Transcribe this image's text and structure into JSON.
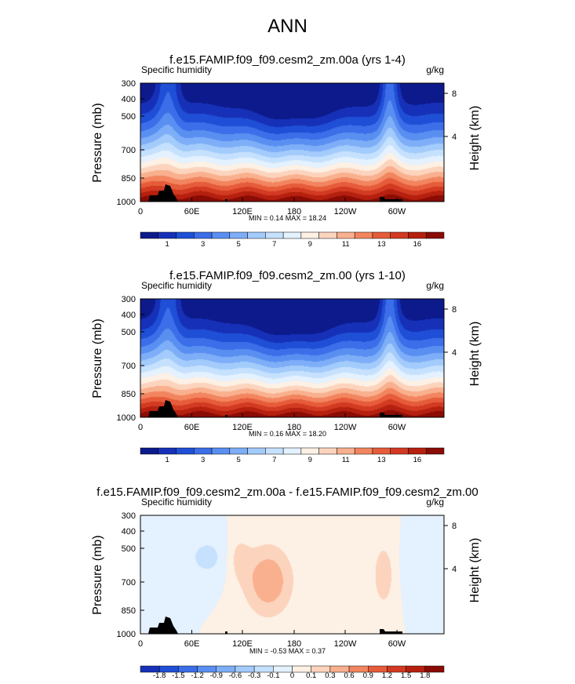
{
  "figure_title": "ANN",
  "colors": {
    "main_palette": [
      "#0d1a8c",
      "#1631b8",
      "#1f4fd6",
      "#3b6ee8",
      "#5a8ff2",
      "#7eaef7",
      "#a3cbfb",
      "#c6e1fd",
      "#e4f1fe",
      "#fdf0e4",
      "#fcd4bd",
      "#f9b08e",
      "#f2855f",
      "#e65c3a",
      "#d23a22",
      "#b5200f",
      "#8a0c05"
    ],
    "diff_palette": [
      "#1631b8",
      "#1f4fd6",
      "#3b6ee8",
      "#5a8ff2",
      "#7eaef7",
      "#a3cbfb",
      "#c6e1fd",
      "#e4f1fe",
      "#fdf0e4",
      "#fcd4bd",
      "#f9b08e",
      "#f2855f",
      "#e65c3a",
      "#d23a22",
      "#b5200f",
      "#8a0c05"
    ]
  },
  "chart_data": [
    {
      "type": "heatmap",
      "title": "f.e15.FAMIP.f09_f09.cesm2_zm.00a (yrs 1-4)",
      "variable_label": "Specific humidity",
      "units_label": "g/kg",
      "ylabel": "Pressure (mb)",
      "ylabel_right": "Height (km)",
      "x_ticks": [
        "0",
        "60E",
        "120E",
        "180",
        "120W",
        "60W"
      ],
      "y_ticks": [
        "300",
        "400",
        "500",
        "700",
        "850",
        "1000"
      ],
      "y_right_ticks": [
        "8",
        "4"
      ],
      "y_scale": "log-pressure",
      "xlim": [
        0,
        360
      ],
      "ylim": [
        1000,
        300
      ],
      "min_max_text": "MIN =  0.14  MAX =  18.24",
      "min": 0.14,
      "max": 18.24,
      "colorbar_labels": [
        "1",
        "3",
        "5",
        "7",
        "9",
        "11",
        "13",
        "16"
      ]
    },
    {
      "type": "heatmap",
      "title": "f.e15.FAMIP.f09_f09.cesm2_zm.00 (yrs 1-10)",
      "variable_label": "Specific humidity",
      "units_label": "g/kg",
      "ylabel": "Pressure (mb)",
      "ylabel_right": "Height (km)",
      "x_ticks": [
        "0",
        "60E",
        "120E",
        "180",
        "120W",
        "60W"
      ],
      "y_ticks": [
        "300",
        "400",
        "500",
        "700",
        "850",
        "1000"
      ],
      "y_right_ticks": [
        "8",
        "4"
      ],
      "y_scale": "log-pressure",
      "xlim": [
        0,
        360
      ],
      "ylim": [
        1000,
        300
      ],
      "min_max_text": "MIN =  0.16  MAX =  18.20",
      "min": 0.16,
      "max": 18.2,
      "colorbar_labels": [
        "1",
        "3",
        "5",
        "7",
        "9",
        "11",
        "13",
        "16"
      ]
    },
    {
      "type": "heatmap",
      "title": "f.e15.FAMIP.f09_f09.cesm2_zm.00a - f.e15.FAMIP.f09_f09.cesm2_zm.00",
      "variable_label": "Specific humidity",
      "units_label": "g/kg",
      "ylabel": "Pressure (mb)",
      "ylabel_right": "Height (km)",
      "x_ticks": [
        "0",
        "60E",
        "120E",
        "180",
        "120W",
        "60W"
      ],
      "y_ticks": [
        "300",
        "400",
        "500",
        "700",
        "850",
        "1000"
      ],
      "y_right_ticks": [
        "8",
        "4"
      ],
      "y_scale": "log-pressure",
      "xlim": [
        0,
        360
      ],
      "ylim": [
        1000,
        300
      ],
      "min_max_text": "MIN = -0.53  MAX =  0.37",
      "min": -0.53,
      "max": 0.37,
      "colorbar_labels": [
        "-1.8",
        "-1.5",
        "-1.2",
        "-0.9",
        "-0.6",
        "-0.3",
        "-0.1",
        "0",
        "0.1",
        "0.3",
        "0.6",
        "0.9",
        "1.2",
        "1.5",
        "1.8"
      ]
    }
  ]
}
